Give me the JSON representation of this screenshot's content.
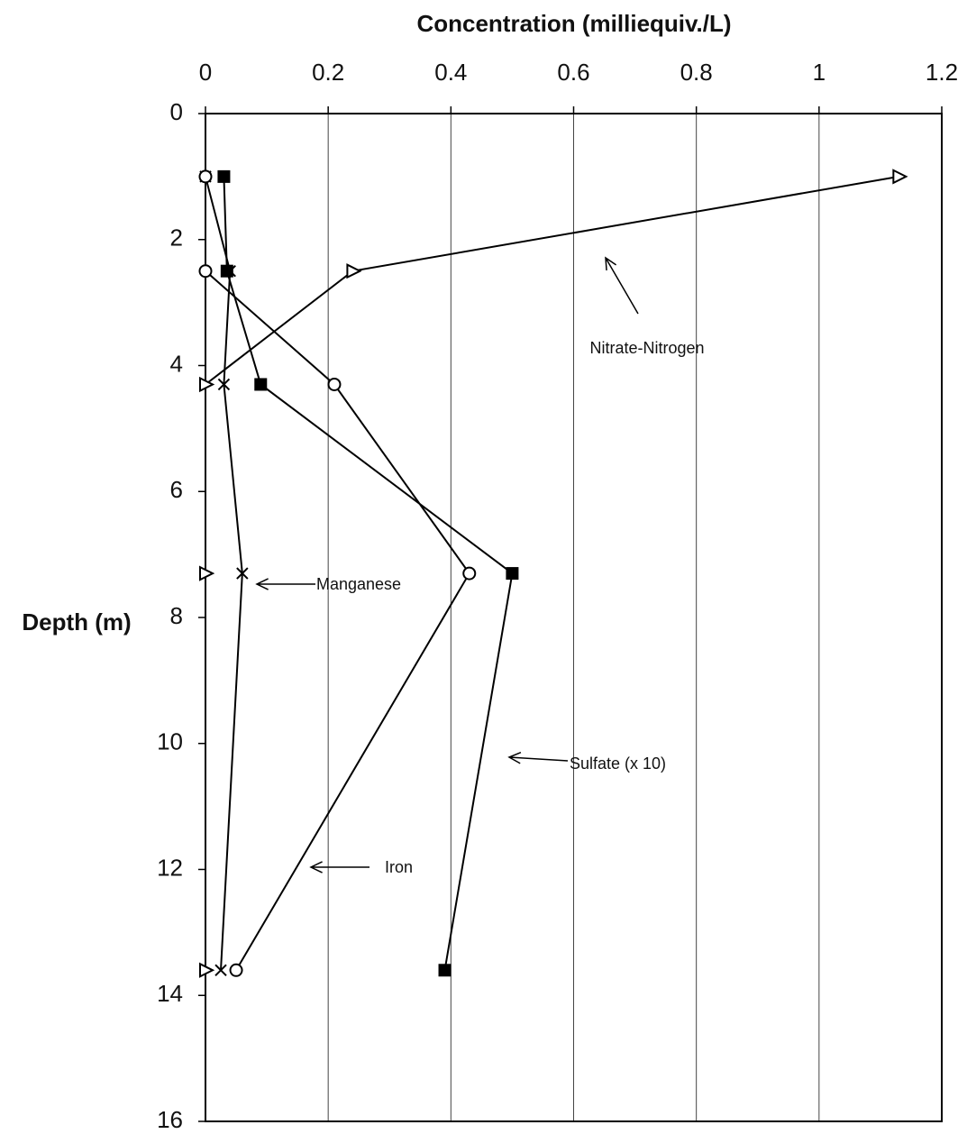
{
  "chart_data": {
    "type": "line",
    "title": "Concentration (milliequiv./L)",
    "y_label": "Depth (m)",
    "y": [
      1,
      2.5,
      4.3,
      7.3,
      13.6
    ],
    "series": [
      {
        "name": "Nitrate-Nitrogen",
        "color": "#000000",
        "marker": "triangle-open",
        "values": [
          1.13,
          0.24,
          0,
          0,
          0
        ]
      },
      {
        "name": "Manganese",
        "color": "#000000",
        "marker": "x",
        "values": [
          0,
          0.04,
          0.03,
          0.06,
          0.025
        ]
      },
      {
        "name": "Sulfate  (x 10)",
        "color": "#000000",
        "marker": "square-filled",
        "values": [
          0.03,
          0.035,
          0.09,
          0.5,
          0.39
        ]
      },
      {
        "name": "Iron",
        "color": "#000000",
        "marker": "circle-open",
        "values": [
          0,
          0,
          0.21,
          0.43,
          0.05
        ]
      }
    ],
    "xlim": [
      0,
      1.2
    ],
    "xticks": [
      0,
      0.2,
      0.4,
      0.6,
      0.8,
      1,
      1.2
    ],
    "ylim": [
      0,
      16
    ],
    "yticks": [
      0,
      2,
      4,
      6,
      8,
      10,
      12,
      14,
      16
    ],
    "y_inverted": true,
    "grid": true
  }
}
